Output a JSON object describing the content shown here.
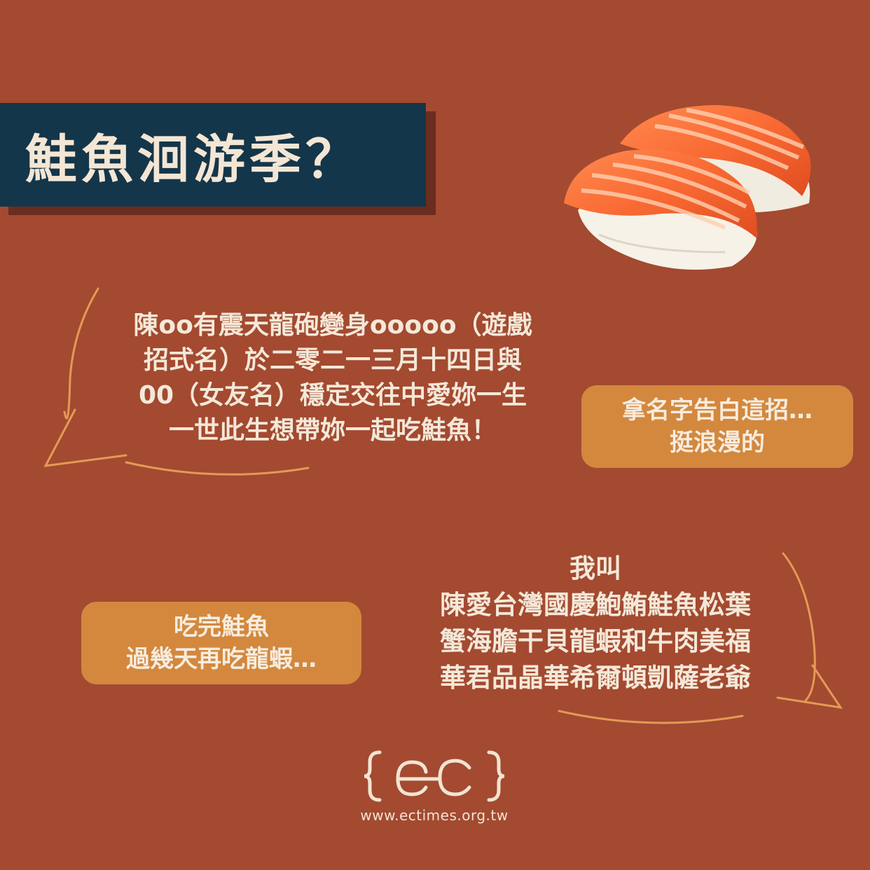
{
  "title": "鮭魚洄游季？",
  "quote_left": {
    "lines": [
      "陳oo有震天龍砲變身ooooo（遊戲",
      "招式名）於二零二一三月十四日與",
      "00（女友名）穩定交往中愛妳一生",
      "一世此生想帶妳一起吃鮭魚！"
    ]
  },
  "pill_top": {
    "lines": [
      "拿名字告白這招…",
      "挺浪漫的"
    ]
  },
  "quote_right": {
    "lines": [
      "我叫",
      "陳愛台灣國慶鮑鮪鮭魚松葉",
      "蟹海膽干貝龍蝦和牛肉美福",
      "華君品晶華希爾頓凱薩老爺"
    ]
  },
  "pill_bottom": {
    "lines": [
      "吃完鮭魚",
      "過幾天再吃龍蝦…"
    ]
  },
  "footer": {
    "url": "www.ectimes.org.tw"
  },
  "colors": {
    "background": "#a34a31",
    "title_box": "#14364a",
    "pill": "#d3883e",
    "bubble_stroke": "#e49a55",
    "text": "#f4e8d8"
  }
}
